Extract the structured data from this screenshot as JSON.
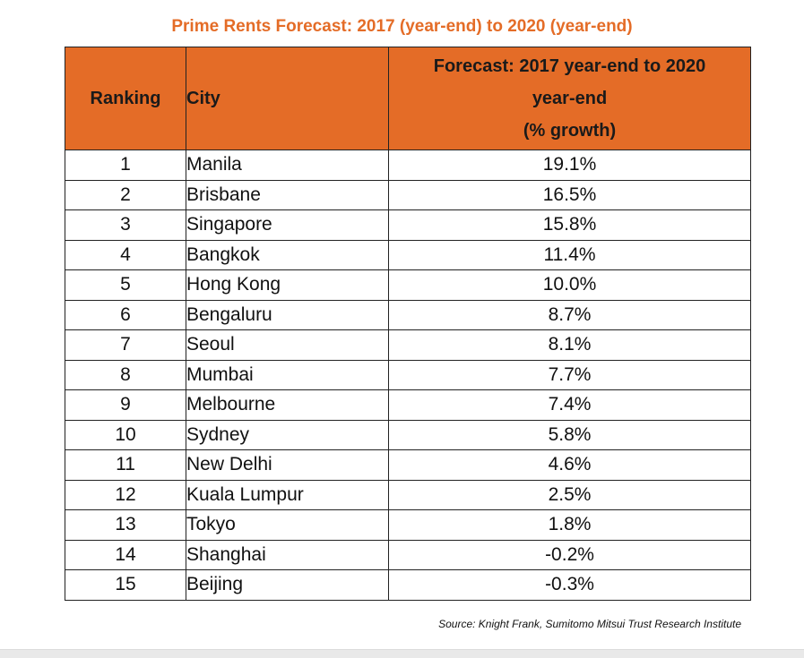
{
  "chart_data": {
    "type": "table",
    "title": "Prime Rents Forecast: 2017 (year-end) to 2020 (year-end)",
    "columns": {
      "ranking": "Ranking",
      "city": "City",
      "forecast_line1": "Forecast: 2017 year-end to 2020",
      "forecast_line2": "year-end",
      "forecast_line3": "(% growth)"
    },
    "rows": [
      {
        "rank": "1",
        "city": "Manila",
        "growth": "19.1%"
      },
      {
        "rank": "2",
        "city": "Brisbane",
        "growth": "16.5%"
      },
      {
        "rank": "3",
        "city": "Singapore",
        "growth": "15.8%"
      },
      {
        "rank": "4",
        "city": "Bangkok",
        "growth": "11.4%"
      },
      {
        "rank": "5",
        "city": "Hong Kong",
        "growth": "10.0%"
      },
      {
        "rank": "6",
        "city": "Bengaluru",
        "growth": "8.7%"
      },
      {
        "rank": "7",
        "city": "Seoul",
        "growth": "8.1%"
      },
      {
        "rank": "8",
        "city": "Mumbai",
        "growth": "7.7%"
      },
      {
        "rank": "9",
        "city": "Melbourne",
        "growth": "7.4%"
      },
      {
        "rank": "10",
        "city": "Sydney",
        "growth": "5.8%"
      },
      {
        "rank": "11",
        "city": "New Delhi",
        "growth": "4.6%"
      },
      {
        "rank": "12",
        "city": "Kuala Lumpur",
        "growth": "2.5%"
      },
      {
        "rank": "13",
        "city": "Tokyo",
        "growth": "1.8%"
      },
      {
        "rank": "14",
        "city": "Shanghai",
        "growth": "-0.2%"
      },
      {
        "rank": "15",
        "city": "Beijing",
        "growth": "-0.3%"
      }
    ],
    "source": "Source: Knight Frank, Sumitomo Mitsui Trust Research Institute",
    "colors": {
      "accent": "#e46c27"
    }
  }
}
